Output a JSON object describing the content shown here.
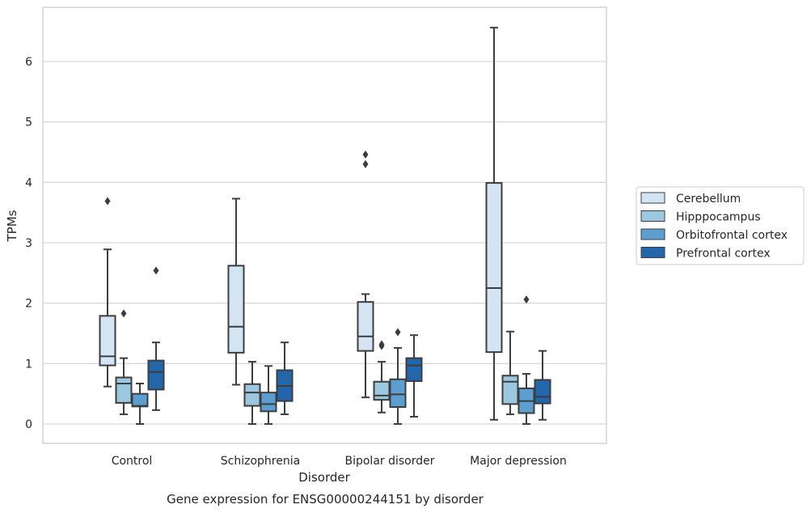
{
  "caption": "Gene expression for ENSG00000244151 by disorder",
  "chart_data": {
    "type": "box",
    "xlabel": "Disorder",
    "ylabel": "TPMs",
    "ylim": [
      -0.3,
      6.9
    ],
    "yticks": [
      0,
      1,
      2,
      3,
      4,
      5,
      6
    ],
    "grid": "horizontal",
    "legend_position": "right",
    "categories": [
      "Control",
      "Schizophrenia",
      "Bipolar disorder",
      "Major depression"
    ],
    "series": [
      {
        "name": "Cerebellum",
        "color": "#d3e4f3",
        "boxes": [
          {
            "whisker_low": 0.62,
            "q1": 0.97,
            "median": 1.12,
            "q3": 1.79,
            "whisker_high": 2.89,
            "outliers": [
              3.69
            ]
          },
          {
            "whisker_low": 0.65,
            "q1": 1.18,
            "median": 1.61,
            "q3": 2.62,
            "whisker_high": 3.73,
            "outliers": []
          },
          {
            "whisker_low": 0.44,
            "q1": 1.21,
            "median": 1.45,
            "q3": 2.02,
            "whisker_high": 2.15,
            "outliers": [
              4.3,
              4.46
            ]
          },
          {
            "whisker_low": 0.07,
            "q1": 1.19,
            "median": 2.25,
            "q3": 3.99,
            "whisker_high": 6.56,
            "outliers": []
          }
        ]
      },
      {
        "name": "Hipppocampus",
        "color": "#9ac8e0",
        "boxes": [
          {
            "whisker_low": 0.16,
            "q1": 0.35,
            "median": 0.67,
            "q3": 0.77,
            "whisker_high": 1.09,
            "outliers": [
              1.83
            ]
          },
          {
            "whisker_low": 0.0,
            "q1": 0.3,
            "median": 0.52,
            "q3": 0.66,
            "whisker_high": 1.03,
            "outliers": []
          },
          {
            "whisker_low": 0.19,
            "q1": 0.4,
            "median": 0.47,
            "q3": 0.7,
            "whisker_high": 1.03,
            "outliers": [
              1.29,
              1.32
            ]
          },
          {
            "whisker_low": 0.16,
            "q1": 0.33,
            "median": 0.7,
            "q3": 0.8,
            "whisker_high": 1.53,
            "outliers": []
          }
        ]
      },
      {
        "name": "Orbitofrontal cortex",
        "color": "#5a9fcf",
        "boxes": [
          {
            "whisker_low": 0.0,
            "q1": 0.29,
            "median": 0.3,
            "q3": 0.5,
            "whisker_high": 0.67,
            "outliers": []
          },
          {
            "whisker_low": 0.0,
            "q1": 0.21,
            "median": 0.33,
            "q3": 0.52,
            "whisker_high": 0.96,
            "outliers": []
          },
          {
            "whisker_low": 0.0,
            "q1": 0.28,
            "median": 0.49,
            "q3": 0.74,
            "whisker_high": 1.26,
            "outliers": [
              1.52
            ]
          },
          {
            "whisker_low": 0.0,
            "q1": 0.18,
            "median": 0.38,
            "q3": 0.59,
            "whisker_high": 0.83,
            "outliers": [
              2.06
            ]
          }
        ]
      },
      {
        "name": "Prefrontal cortex",
        "color": "#2266ac",
        "boxes": [
          {
            "whisker_low": 0.23,
            "q1": 0.57,
            "median": 0.86,
            "q3": 1.05,
            "whisker_high": 1.35,
            "outliers": [
              2.54
            ]
          },
          {
            "whisker_low": 0.16,
            "q1": 0.38,
            "median": 0.63,
            "q3": 0.89,
            "whisker_high": 1.35,
            "outliers": []
          },
          {
            "whisker_low": 0.12,
            "q1": 0.71,
            "median": 0.97,
            "q3": 1.09,
            "whisker_high": 1.47,
            "outliers": []
          },
          {
            "whisker_low": 0.07,
            "q1": 0.34,
            "median": 0.45,
            "q3": 0.73,
            "whisker_high": 1.21,
            "outliers": []
          }
        ]
      }
    ]
  }
}
